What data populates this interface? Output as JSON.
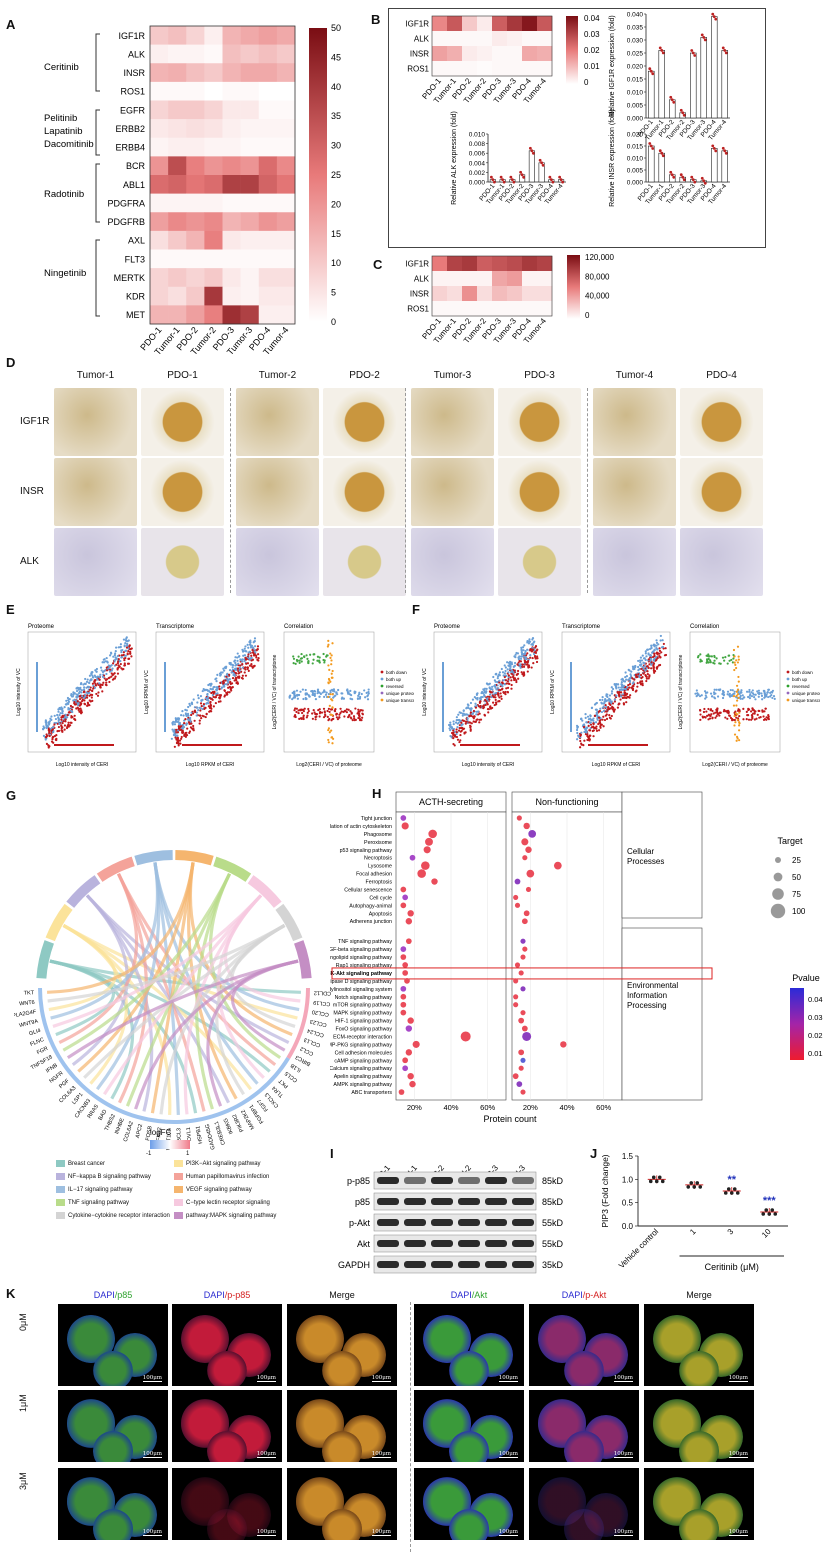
{
  "panels": {
    "A": "A",
    "B": "B",
    "C": "C",
    "D": "D",
    "E": "E",
    "F": "F",
    "G": "G",
    "H": "H",
    "I": "I",
    "J": "J",
    "K": "K"
  },
  "samples": [
    "PDO-1",
    "Tumor-1",
    "PDO-2",
    "Tumor-2",
    "PDO-3",
    "Tumor-3",
    "PDO-4",
    "Tumor-4"
  ],
  "panelA": {
    "genes": [
      "IGF1R",
      "ALK",
      "INSR",
      "ROS1",
      "EGFR",
      "ERBB2",
      "ERBB4",
      "BCR",
      "ABL1",
      "PDGFRA",
      "PDGFRB",
      "AXL",
      "FLT3",
      "MERTK",
      "KDR",
      "MET"
    ],
    "drug_groups": [
      {
        "label": "Ceritinib"
      },
      {
        "label": "Pelitinib"
      },
      {
        "label": "Lapatinib"
      },
      {
        "label": "Dacomitinib"
      },
      {
        "label": "Radotinib"
      },
      {
        "label": "Ningetinib"
      }
    ],
    "scale_ticks": [
      "50",
      "45",
      "40",
      "35",
      "30",
      "25",
      "20",
      "15",
      "10",
      "5",
      "0"
    ],
    "color_max": 50,
    "matrix": [
      [
        10,
        12,
        8,
        3,
        14,
        16,
        18,
        16
      ],
      [
        3,
        2,
        2,
        1,
        12,
        10,
        12,
        10
      ],
      [
        14,
        15,
        12,
        10,
        14,
        16,
        16,
        14
      ],
      [
        1,
        1,
        1,
        0,
        1,
        1,
        0,
        0
      ],
      [
        8,
        10,
        10,
        8,
        4,
        4,
        1,
        1
      ],
      [
        4,
        5,
        6,
        5,
        3,
        2,
        2,
        2
      ],
      [
        2,
        3,
        3,
        2,
        2,
        1,
        1,
        1
      ],
      [
        20,
        35,
        24,
        20,
        22,
        20,
        28,
        22
      ],
      [
        28,
        30,
        26,
        28,
        38,
        38,
        30,
        26
      ],
      [
        2,
        2,
        2,
        2,
        1,
        1,
        1,
        1
      ],
      [
        18,
        22,
        20,
        22,
        14,
        16,
        20,
        18
      ],
      [
        6,
        10,
        14,
        24,
        4,
        3,
        3,
        3
      ],
      [
        1,
        1,
        1,
        1,
        1,
        1,
        1,
        1
      ],
      [
        8,
        10,
        8,
        10,
        4,
        2,
        6,
        6
      ],
      [
        8,
        6,
        10,
        40,
        3,
        2,
        4,
        4
      ],
      [
        14,
        14,
        18,
        24,
        42,
        38,
        3,
        3
      ]
    ]
  },
  "panelB": {
    "genes": [
      "IGF1R",
      "ALK",
      "INSR",
      "ROS1"
    ],
    "scale_ticks": [
      "0.04",
      "0.03",
      "0.02",
      "0.01",
      "0"
    ],
    "color_max": 0.04,
    "matrix": [
      [
        0.018,
        0.026,
        0.008,
        0.003,
        0.025,
        0.032,
        0.038,
        0.026
      ],
      [
        0.001,
        0.001,
        0.001,
        0.001,
        0.003,
        0.002,
        0.001,
        0.001
      ],
      [
        0.014,
        0.012,
        0.003,
        0.002,
        0.001,
        0.001,
        0.013,
        0.012
      ],
      [
        0.001,
        0.001,
        0.001,
        0.0005,
        0.001,
        0.001,
        0.001,
        0.001
      ]
    ]
  },
  "panelC": {
    "genes": [
      "IGF1R",
      "ALK",
      "INSR",
      "ROS1"
    ],
    "scale_ticks": [
      "120,000",
      "80,000",
      "40,000",
      "0"
    ],
    "color_max": 120000,
    "matrix": [
      [
        60000,
        90000,
        95000,
        75000,
        80000,
        85000,
        95000,
        90000
      ],
      [
        5000,
        5000,
        5000,
        5000,
        40000,
        45000,
        5000,
        5000
      ],
      [
        20000,
        15000,
        50000,
        15000,
        30000,
        25000,
        15000,
        15000
      ],
      [
        3000,
        3000,
        3000,
        3000,
        3000,
        3000,
        3000,
        3000
      ]
    ]
  },
  "chart_data": [
    {
      "type": "bar",
      "ylabel": "Relative IGF1R expression (fold)",
      "categories": [
        "PDO-1",
        "Tumor-1",
        "PDO-2",
        "Tumor-2",
        "PDO-3",
        "Tumor-3",
        "PDO-4",
        "Tumor-4"
      ],
      "values": [
        0.018,
        0.026,
        0.007,
        0.002,
        0.025,
        0.031,
        0.039,
        0.026
      ],
      "ylim": [
        0,
        0.04
      ],
      "yticks": [
        "0.000",
        "0.005",
        "0.010",
        "0.015",
        "0.020",
        "0.025",
        "0.030",
        "0.035",
        "0.040"
      ]
    },
    {
      "type": "bar",
      "ylabel": "Relative ALK expression (fold)",
      "categories": [
        "PDO-1",
        "Tumor-1",
        "PDO-2",
        "Tumor-2",
        "PDO-3",
        "Tumor-3",
        "PDO-4",
        "Tumor-4"
      ],
      "values": [
        0.0005,
        0.0005,
        0.0005,
        0.0015,
        0.0065,
        0.004,
        0.0005,
        0.0005
      ],
      "ylim": [
        0,
        0.01
      ],
      "yticks": [
        "0.000",
        "0.002",
        "0.004",
        "0.006",
        "0.008",
        "0.010"
      ]
    },
    {
      "type": "bar",
      "ylabel": "Relative INSR expression (fold)",
      "categories": [
        "PDO-1",
        "Tumor-1",
        "PDO-2",
        "Tumor-2",
        "PDO-3",
        "Tumor-3",
        "PDO-4",
        "Tumor-4"
      ],
      "values": [
        0.015,
        0.012,
        0.003,
        0.002,
        0.001,
        0.0005,
        0.014,
        0.013
      ],
      "ylim": [
        0,
        0.02
      ],
      "yticks": [
        "0.000",
        "0.005",
        "0.010",
        "0.015",
        "0.020"
      ]
    },
    {
      "type": "scatter",
      "ylabel": "PIP3 (Fold change)",
      "xlabel": "Ceritinib (μM)",
      "categories": [
        "Vehicle control",
        "1",
        "3",
        "10"
      ],
      "values": [
        1.0,
        0.88,
        0.75,
        0.3
      ],
      "ylim": [
        0,
        1.5
      ],
      "yticks": [
        "0.0",
        "0.5",
        "1.0",
        "1.5"
      ],
      "significance": [
        "",
        "",
        "**",
        "***"
      ]
    },
    {
      "type": "scatter",
      "title": "",
      "xlabel": "Protein count",
      "facets": [
        "ACTH-secreting",
        "Non-functioning"
      ],
      "xticks": [
        "20%",
        "40%",
        "60%"
      ],
      "xlim": [
        10,
        70
      ],
      "groups": [
        {
          "label": "Cellular Processes",
          "terms": [
            "Tight junction",
            "Regulation of actin cytoskeleton",
            "Phagosome",
            "Peroxisome",
            "p53 signaling pathway",
            "Necroptosis",
            "Lysosome",
            "Focal adhesion",
            "Ferroptosis",
            "Cellular senescence",
            "Cell cycle",
            "Autophagy-animal",
            "Apoptosis",
            "Adherens junction"
          ]
        },
        {
          "label": "Environmental Information Processing",
          "terms": [
            "TNF signaling pathway",
            "TGF-beta signaling pathway",
            "Sphingolipid signaling pathway",
            "Rap1 signaling pathway",
            "PI3K-Akt signaling pathway",
            "Phospholipase D signaling pathway",
            "Phosphatidylinositol signaling system",
            "Notch signaling pathway",
            "mTOR signaling pathway",
            "MAPK signaling pathway",
            "HIF-1 signaling pathway",
            "FoxO signaling pathway",
            "ECM-receptor interaction",
            "cGMP-PKG signaling pathway",
            "Cell adhesion molecules",
            "cAMP signaling pathway",
            "Calcium signaling pathway",
            "Apelin signaling pathway",
            "AMPK signaling pathway",
            "ABC transporters"
          ]
        }
      ],
      "acth_x": [
        14,
        15,
        30,
        28,
        27,
        19,
        26,
        24,
        31,
        14,
        15,
        14,
        18,
        17,
        17,
        14,
        14,
        15,
        15,
        16,
        14,
        14,
        14,
        14,
        18,
        17,
        48,
        21,
        17,
        15,
        15,
        18,
        19,
        13
      ],
      "nf_x": [
        14,
        18,
        21,
        17,
        19,
        17,
        35,
        20,
        13,
        19,
        12,
        13,
        18,
        17,
        16,
        17,
        16,
        13,
        15,
        12,
        16,
        12,
        12,
        16,
        15,
        17,
        18,
        38,
        15,
        16,
        15,
        12,
        14,
        16
      ],
      "acth_size": [
        40,
        50,
        60,
        55,
        50,
        40,
        60,
        60,
        45,
        40,
        40,
        40,
        45,
        45,
        40,
        40,
        40,
        40,
        40,
        40,
        40,
        40,
        40,
        40,
        45,
        45,
        70,
        50,
        45,
        40,
        40,
        45,
        45,
        40
      ],
      "legend_target_title": "Target",
      "legend_target_values": [
        "25",
        "50",
        "75",
        "100"
      ],
      "legend_p_title": "Pvalue",
      "legend_p_values": [
        "0.04",
        "0.03",
        "0.02",
        "0.01"
      ]
    }
  ],
  "panelD": {
    "columns": [
      "Tumor-1",
      "PDO-1",
      "Tumor-2",
      "PDO-2",
      "Tumor-3",
      "PDO-3",
      "Tumor-4",
      "PDO-4"
    ],
    "rows": [
      "IGF1R",
      "INSR",
      "ALK"
    ]
  },
  "panelE": {
    "titles": [
      "Proteome",
      "Transcriptome",
      "Correlation"
    ],
    "xlabels": [
      "Log10 intensity of CERI",
      "Log10 RPKM of CERI",
      "Log2(CERI / VC) of proteome"
    ],
    "ylabels": [
      "Log10 intensity of VC",
      "Log10 RPKM of VC",
      "Log2(CERI / VC) of transcriptome"
    ],
    "legend": [
      "both down",
      "both up",
      "reversed",
      "unique proteome",
      "unique transcriptome"
    ]
  },
  "panelF": {
    "titles": [
      "Proteome",
      "Transcriptome",
      "Correlation"
    ],
    "xlabels": [
      "Log10 intensity of CERI",
      "Log10 RPKM of CERI",
      "Log2(CERI / VC) of proteome"
    ],
    "ylabels": [
      "Log10 intensity of VC",
      "Log10 RPKM of VC",
      "Log2(CERI / VC) of transcriptome"
    ],
    "legend": [
      "both down",
      "both up",
      "reversed",
      "unique proteome",
      "unique transcriptome"
    ]
  },
  "panelG": {
    "genes": [
      "CDL12",
      "CCL19",
      "CCL20",
      "CCL23",
      "CCL24",
      "CCL13",
      "CCL2",
      "BIRC3",
      "IL1B",
      "CCL5",
      "PKT",
      "TLR4",
      "CXCL3",
      "FGF7",
      "FGFBP1",
      "MAP2K2",
      "PIK3R2",
      "IKBKG",
      "CREB3L1",
      "GADD45G",
      "HSPB1",
      "DVL1",
      "BCL3",
      "WNT10A",
      "NFKB2",
      "FOSB",
      "APC2",
      "COL6A2",
      "INHBE",
      "THBS2",
      "BAD",
      "RRAS",
      "CACNB3",
      "LSP1",
      "COL6A3",
      "PGF",
      "NGFR",
      "IFNB",
      "TNFSF18",
      "FGR",
      "FLNC",
      "GLI4",
      "WNT9A",
      "PLA2G4F",
      "WNT6",
      "TKT"
    ],
    "logfc_label": "logFC",
    "logfc_min": "-1",
    "logfc_max": "1",
    "legend": [
      {
        "label": "Breast cancer",
        "color": "#8ec9c3"
      },
      {
        "label": "PI3K−Akt signaling pathway",
        "color": "#fbe39a"
      },
      {
        "label": "NF−kappa B signaling pathway",
        "color": "#b9b3dd"
      },
      {
        "label": "Human papillomavirus infection",
        "color": "#f4a39a"
      },
      {
        "label": "IL−17 signaling pathway",
        "color": "#9ebfe0"
      },
      {
        "label": "VEGF signaling pathway",
        "color": "#f5b56e"
      },
      {
        "label": "TNF signaling pathway",
        "color": "#b9dc8a"
      },
      {
        "label": "C−type lectin receptor signaling",
        "color": "#f6c9df"
      },
      {
        "label": "Cytokine−cytokine receptor interaction",
        "color": "#d4d4d4"
      },
      {
        "label": "pathway:MAPK signaling pathway",
        "color": "#c48ec4"
      }
    ]
  },
  "panelI": {
    "lanes": [
      "VC-1",
      "CERI-1",
      "VC-2",
      "CERI-2",
      "VC-3",
      "CERI-3"
    ],
    "rows": [
      {
        "label": "p-p85",
        "kd": "85kD"
      },
      {
        "label": "p85",
        "kd": "85kD"
      },
      {
        "label": "p-Akt",
        "kd": "55kD"
      },
      {
        "label": "Akt",
        "kd": "55kD"
      },
      {
        "label": "GAPDH",
        "kd": "35kD"
      }
    ]
  },
  "panelK": {
    "left_headers": [
      {
        "a": "DAPI",
        "b": "/p85",
        "bcolor": "#2ea32e"
      },
      {
        "a": "DAPI",
        "b": "/p-p85",
        "bcolor": "#d42020"
      },
      {
        "a": "",
        "b": "Merge",
        "bcolor": "#111"
      }
    ],
    "right_headers": [
      {
        "a": "DAPI",
        "b": "/Akt",
        "bcolor": "#2ea32e"
      },
      {
        "a": "DAPI",
        "b": "/p-Akt",
        "bcolor": "#d42020"
      },
      {
        "a": "",
        "b": "Merge",
        "bcolor": "#111"
      }
    ],
    "rows": [
      "0μM",
      "1μM",
      "3μM"
    ],
    "scale_label": "100μm"
  }
}
